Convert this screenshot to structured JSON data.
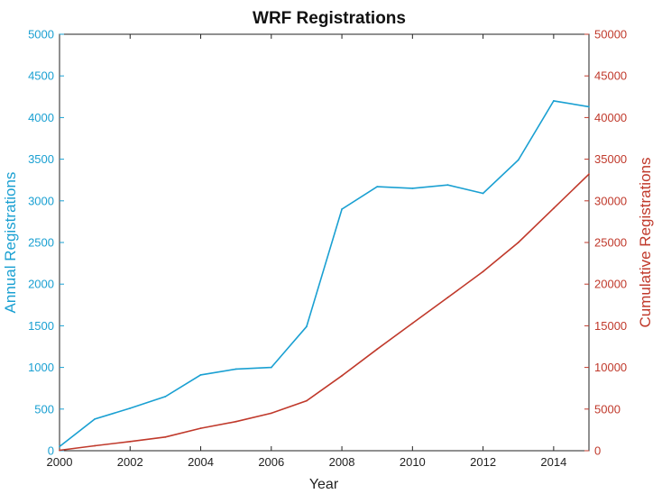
{
  "chart_data": {
    "type": "line",
    "title": "WRF Registrations",
    "xlabel": "Year",
    "ylabel_left": "Annual Registrations",
    "ylabel_right": "Cumulative Registrations",
    "x": [
      2000,
      2001,
      2002,
      2003,
      2004,
      2005,
      2006,
      2007,
      2008,
      2009,
      2010,
      2011,
      2012,
      2013,
      2014,
      2015
    ],
    "xlim": [
      2000,
      2015
    ],
    "ylim_left": [
      0,
      5000
    ],
    "ylim_right": [
      0,
      50000
    ],
    "x_ticks": [
      "2000",
      "2002",
      "2004",
      "2006",
      "2008",
      "2010",
      "2012",
      "2014"
    ],
    "y_left_ticks": [
      "0",
      "500",
      "1000",
      "1500",
      "2000",
      "2500",
      "3000",
      "3500",
      "4000",
      "4500",
      "5000"
    ],
    "y_right_ticks": [
      "0",
      "5000",
      "10000",
      "15000",
      "20000",
      "25000",
      "30000",
      "35000",
      "40000",
      "45000",
      "50000"
    ],
    "grid": false,
    "series": [
      {
        "axis": "left",
        "color": "#1aa0d2",
        "values": [
          50,
          380,
          510,
          650,
          910,
          980,
          1000,
          1490,
          2900,
          3170,
          3150,
          3190,
          3090,
          3490,
          4200,
          4130
        ]
      },
      {
        "axis": "right",
        "color": "#c0392b",
        "values": [
          50,
          600,
          1100,
          1650,
          2700,
          3500,
          4500,
          6000,
          9000,
          12200,
          15300,
          18400,
          21500,
          25000,
          29100,
          33200
        ]
      }
    ]
  }
}
